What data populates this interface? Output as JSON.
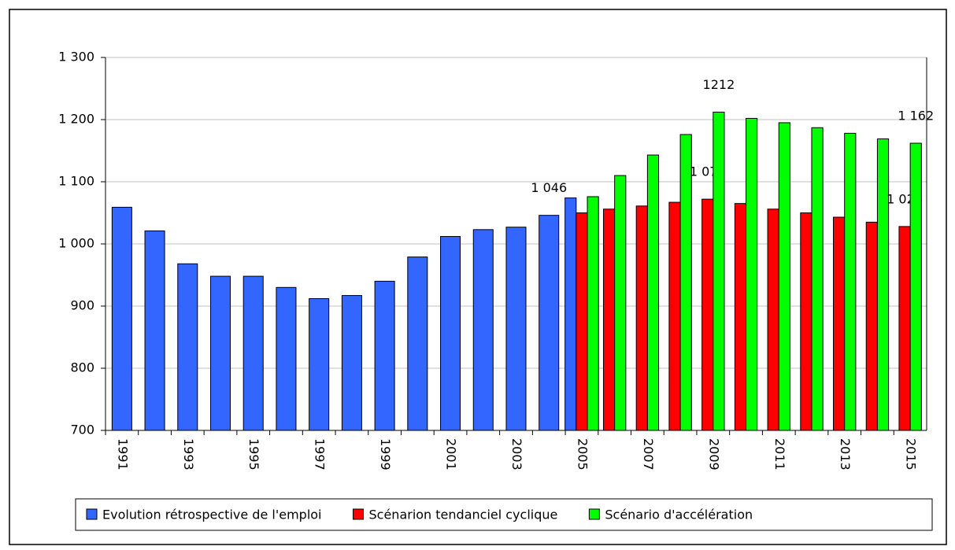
{
  "chart_data": {
    "type": "bar",
    "categories": [
      "1991",
      null,
      "1993",
      null,
      "1995",
      null,
      "1997",
      null,
      "1999",
      null,
      "2001",
      null,
      "2003",
      null,
      "2005",
      null,
      "2007",
      null,
      "2009",
      null,
      "2011",
      null,
      "2013",
      null,
      "2015"
    ],
    "series": [
      {
        "name": "Evolution rétrospective de l'emploi",
        "color": "#3366ff",
        "values": [
          1059,
          1021,
          968,
          948,
          948,
          930,
          912,
          917,
          940,
          979,
          1012,
          1023,
          1027,
          1046,
          1074,
          null,
          null,
          null,
          null,
          null,
          null,
          null,
          null,
          null,
          null
        ],
        "value_labels": [
          null,
          null,
          null,
          null,
          null,
          null,
          null,
          null,
          null,
          null,
          null,
          null,
          null,
          "1 046",
          null,
          null,
          null,
          null,
          null,
          null,
          null,
          null,
          null,
          null,
          null
        ]
      },
      {
        "name": "Scénarion tendanciel cyclique",
        "color": "#ff0000",
        "values": [
          null,
          null,
          null,
          null,
          null,
          null,
          null,
          null,
          null,
          null,
          null,
          null,
          null,
          null,
          1050,
          1056,
          1061,
          1067,
          1072,
          1065,
          1056,
          1050,
          1043,
          1035,
          1028
        ],
        "value_labels": [
          null,
          null,
          null,
          null,
          null,
          null,
          null,
          null,
          null,
          null,
          null,
          null,
          null,
          null,
          null,
          null,
          null,
          null,
          "1 072",
          null,
          null,
          null,
          null,
          null,
          "1 028"
        ]
      },
      {
        "name": "Scénario d'accélération",
        "color": "#00ff00",
        "values": [
          null,
          null,
          null,
          null,
          null,
          null,
          null,
          null,
          null,
          null,
          null,
          null,
          null,
          null,
          1076,
          1110,
          1143,
          1176,
          1212,
          1202,
          1195,
          1187,
          1178,
          1169,
          1162
        ],
        "value_labels": [
          null,
          null,
          null,
          null,
          null,
          null,
          null,
          null,
          null,
          null,
          null,
          null,
          null,
          null,
          null,
          null,
          null,
          null,
          "1212",
          null,
          null,
          null,
          null,
          null,
          "1 162"
        ]
      }
    ],
    "ylim": [
      700,
      1300
    ],
    "yticks": [
      700,
      800,
      900,
      {
        "value": 1000,
        "label": "1 000"
      },
      {
        "value": 1100,
        "label": "1 100"
      },
      {
        "value": 1200,
        "label": "1 200"
      },
      {
        "value": 1300,
        "label": "1 300"
      }
    ],
    "grid": true,
    "legend": "bottom"
  }
}
